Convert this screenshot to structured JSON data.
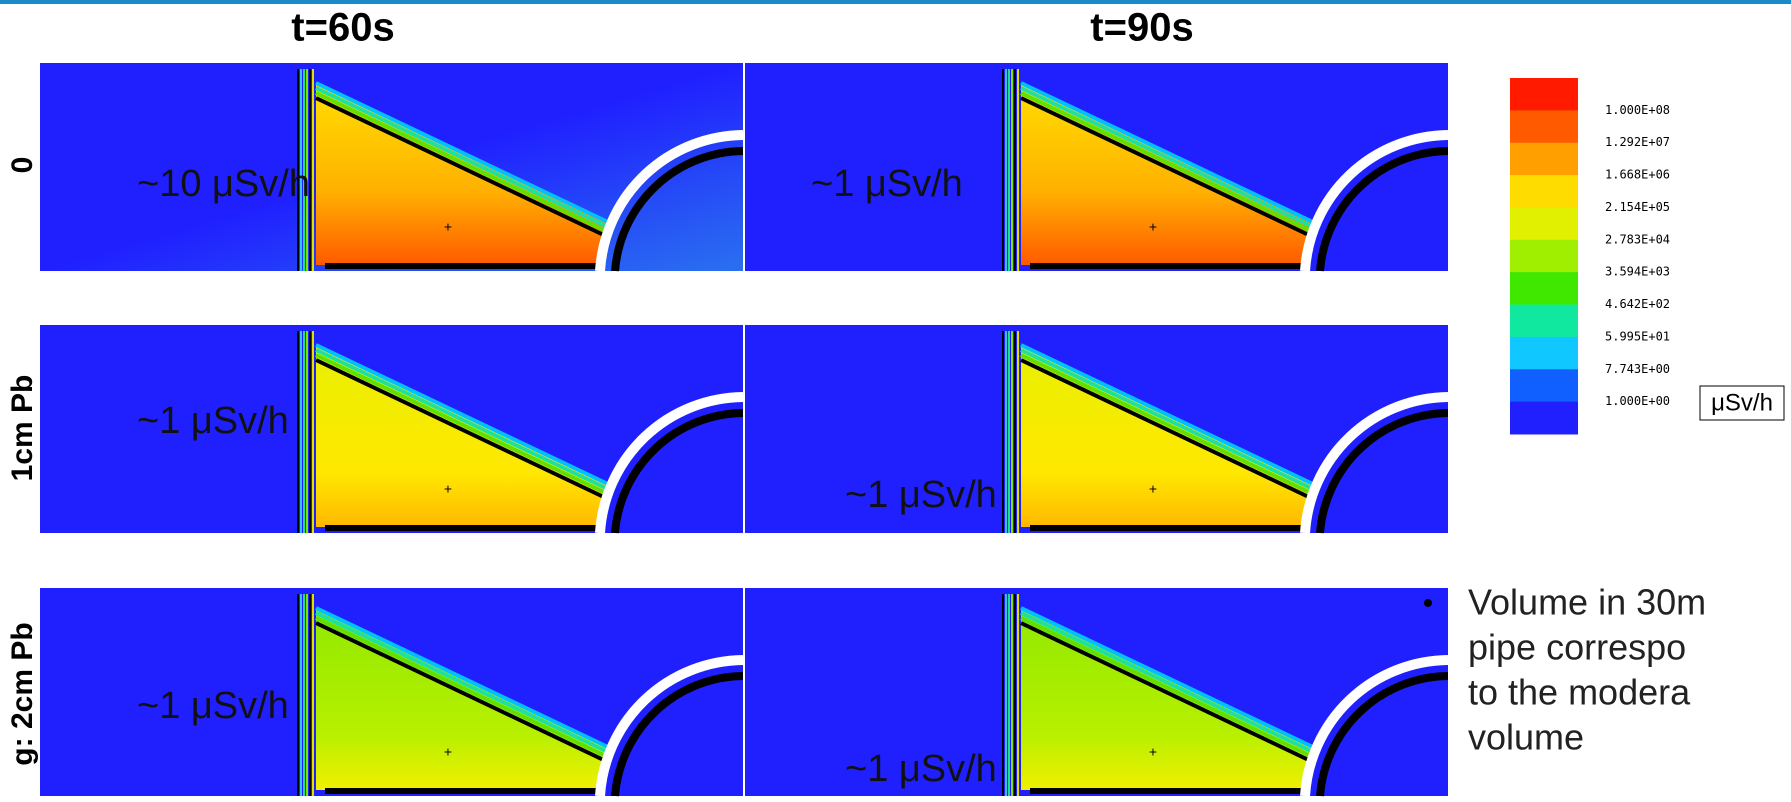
{
  "columns": [
    "t=60s",
    "t=90s"
  ],
  "rows": [
    "0",
    "1cm Pb",
    "g: 2cm Pb"
  ],
  "annotations": [
    [
      "~10 μSv/h",
      "~1 μSv/h"
    ],
    [
      "~1 μSv/h",
      "~1 μSv/h"
    ],
    [
      "~1 μSv/h",
      "~1 μSv/h"
    ]
  ],
  "colorbar": {
    "labels": [
      "1.000E+08",
      "1.292E+07",
      "1.668E+06",
      "2.154E+05",
      "2.783E+04",
      "3.594E+03",
      "4.642E+02",
      "5.995E+01",
      "7.743E+00",
      "1.000E+00"
    ],
    "unit": "μSv/h"
  },
  "bullet": [
    "Volume in 30m",
    "pipe correspo",
    "to the modera",
    "volume"
  ]
}
